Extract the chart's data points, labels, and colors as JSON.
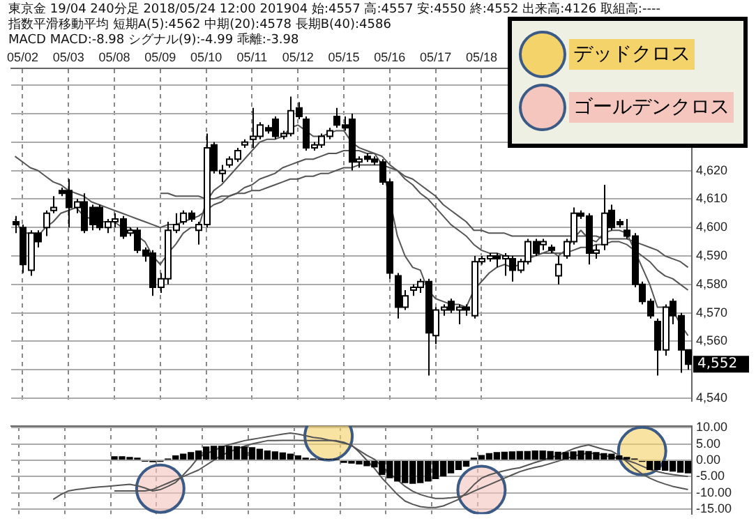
{
  "chart_data": [
    {
      "type": "candlestick",
      "title": "東京金 19/04 240分足 2018/05/24 12:00 201904 始:4557 高:4557 安:4550 終:4552 出来高:4126 取組高:----",
      "subtitle": "指数平滑移動平均 短期A(5):4562 中期(20):4578 長期B(40):4586",
      "categories": [
        null,
        "05/02",
        null,
        null,
        null,
        null,
        null,
        "05/03",
        null,
        null,
        null,
        null,
        null,
        "05/08",
        null,
        null,
        null,
        null,
        null,
        "05/09",
        null,
        null,
        null,
        null,
        null,
        "05/10",
        null,
        null,
        null,
        null,
        null,
        "05/11",
        null,
        null,
        null,
        null,
        null,
        "05/12",
        null,
        null,
        null,
        null,
        null,
        "05/15",
        null,
        null,
        null,
        null,
        null,
        "05/16",
        null,
        null,
        null,
        null,
        null,
        "05/17",
        null,
        null,
        null,
        null,
        null,
        "05/18",
        null,
        null,
        null,
        null,
        null,
        null,
        null,
        null,
        null,
        null,
        null,
        null,
        null,
        null,
        null,
        null,
        null,
        null,
        null,
        null,
        null,
        null,
        null,
        null,
        null,
        null,
        null
      ],
      "ohlc": [
        [
          4602,
          4604,
          4598,
          4601
        ],
        [
          4600,
          4601,
          4584,
          4587
        ],
        [
          4585,
          4599,
          4583,
          4598
        ],
        [
          4598,
          4599,
          4593,
          4595
        ],
        [
          4600,
          4606,
          4597,
          4605
        ],
        [
          4606,
          4611,
          4605,
          4607
        ],
        [
          4613,
          4614,
          4611,
          4612
        ],
        [
          4613,
          4617,
          4600,
          4607
        ],
        [
          4607,
          4610,
          4605,
          4609
        ],
        [
          4609,
          4612,
          4598,
          4599
        ],
        [
          4607,
          4608,
          4599,
          4601
        ],
        [
          4607,
          4608,
          4599,
          4600
        ],
        [
          4600,
          4603,
          4598,
          4602
        ],
        [
          4602,
          4605,
          4600,
          4603
        ],
        [
          4603,
          4604,
          4596,
          4597
        ],
        [
          4598,
          4600,
          4597,
          4599
        ],
        [
          4599,
          4600,
          4591,
          4592
        ],
        [
          4592,
          4593,
          4588,
          4590
        ],
        [
          4591,
          4592,
          4576,
          4579
        ],
        [
          4579,
          4584,
          4577,
          4582
        ],
        [
          4582,
          4602,
          4580,
          4599
        ],
        [
          4599,
          4605,
          4598,
          4601
        ],
        [
          4602,
          4606,
          4601,
          4605
        ],
        [
          4605,
          4606,
          4602,
          4603
        ],
        [
          4599,
          4602,
          4594,
          4601
        ],
        [
          4601,
          4633,
          4600,
          4628
        ],
        [
          4629,
          4630,
          4619,
          4620
        ],
        [
          4619,
          4622,
          4616,
          4620
        ],
        [
          4622,
          4625,
          4621,
          4624
        ],
        [
          4624,
          4628,
          4623,
          4627
        ],
        [
          4629,
          4631,
          4628,
          4630
        ],
        [
          4631,
          4642,
          4628,
          4632
        ],
        [
          4632,
          4637,
          4631,
          4636
        ],
        [
          4635,
          4636,
          4633,
          4634
        ],
        [
          4638,
          4639,
          4631,
          4632
        ],
        [
          4632,
          4634,
          4631,
          4633
        ],
        [
          4633,
          4646,
          4632,
          4641
        ],
        [
          4642,
          4644,
          4638,
          4639
        ],
        [
          4638,
          4639,
          4627,
          4628
        ],
        [
          4628,
          4630,
          4627,
          4629
        ],
        [
          4629,
          4633,
          4628,
          4632
        ],
        [
          4632,
          4635,
          4631,
          4634
        ],
        [
          4639,
          4642,
          4635,
          4636
        ],
        [
          4636,
          4639,
          4634,
          4635
        ],
        [
          4638,
          4640,
          4620,
          4623
        ],
        [
          4623,
          4625,
          4621,
          4624
        ],
        [
          4625,
          4626,
          4623,
          4624
        ],
        [
          4624,
          4625,
          4622,
          4623
        ],
        [
          4623,
          4624,
          4615,
          4616
        ],
        [
          4616,
          4617,
          4582,
          4584
        ],
        [
          4583,
          4584,
          4568,
          4572
        ],
        [
          4572,
          4578,
          4571,
          4576
        ],
        [
          4578,
          4580,
          4576,
          4579
        ],
        [
          4579,
          4582,
          4577,
          4581
        ],
        [
          4581,
          4582,
          4548,
          4563
        ],
        [
          4562,
          4572,
          4559,
          4571
        ],
        [
          4571,
          4573,
          4569,
          4572
        ],
        [
          4574,
          4575,
          4570,
          4571
        ],
        [
          4571,
          4573,
          4566,
          4572
        ],
        [
          4572,
          4573,
          4569,
          4571
        ],
        [
          4569,
          4590,
          4568,
          4588
        ],
        [
          4588,
          4590,
          4587,
          4589
        ],
        [
          4589,
          4591,
          4588,
          4590
        ],
        [
          4590,
          4591,
          4586,
          4589
        ],
        [
          4589,
          4591,
          4583,
          4590
        ],
        [
          4589,
          4590,
          4581,
          4585
        ],
        [
          4585,
          4589,
          4584,
          4588
        ],
        [
          4588,
          4596,
          4587,
          4595
        ],
        [
          4595,
          4596,
          4590,
          4591
        ],
        [
          4594,
          4596,
          4592,
          4595
        ],
        [
          4593,
          4594,
          4591,
          4592
        ],
        [
          4583,
          4590,
          4580,
          4587
        ],
        [
          4590,
          4596,
          4589,
          4595
        ],
        [
          4595,
          4607,
          4594,
          4605
        ],
        [
          4605,
          4606,
          4603,
          4604
        ],
        [
          4604,
          4605,
          4587,
          4591
        ],
        [
          4591,
          4594,
          4589,
          4592
        ],
        [
          4594,
          4615,
          4592,
          4605
        ],
        [
          4606,
          4608,
          4599,
          4600
        ],
        [
          4602,
          4603,
          4600,
          4601
        ],
        [
          4599,
          4603,
          4596,
          4597
        ],
        [
          4597,
          4598,
          4579,
          4580
        ],
        [
          4580,
          4581,
          4573,
          4574
        ],
        [
          4574,
          4575,
          4568,
          4569
        ],
        [
          4567,
          4568,
          4548,
          4557
        ],
        [
          4557,
          4573,
          4555,
          4572
        ],
        [
          4574,
          4575,
          4566,
          4569
        ],
        [
          4569,
          4570,
          4549,
          4557
        ],
        [
          4557,
          4557,
          4550,
          4552
        ]
      ],
      "series": [
        {
          "type": "line",
          "color": "#555555",
          "values": [
            4603,
            4598,
            4598,
            4597,
            4600,
            4602,
            4605,
            4606,
            4607,
            4604,
            4603,
            4602,
            4602,
            4602,
            4600,
            4600,
            4597,
            4595,
            4590,
            4587,
            4591,
            4594,
            4598,
            4600,
            4600,
            4609,
            4613,
            4615,
            4618,
            4621,
            4624,
            4627,
            4630,
            4631,
            4631,
            4632,
            4635,
            4636,
            4634,
            4632,
            4632,
            4633,
            4634,
            4634,
            4630,
            4628,
            4627,
            4626,
            4622,
            4610,
            4597,
            4590,
            4586,
            4585,
            4578,
            4575,
            4574,
            4573,
            4573,
            4572,
            4578,
            4581,
            4584,
            4586,
            4587,
            4586,
            4587,
            4589,
            4590,
            4591,
            4592,
            4590,
            4592,
            4596,
            4599,
            4596,
            4595,
            4598,
            4599,
            4599,
            4598,
            4592,
            4586,
            4580,
            4572,
            4572,
            4571,
            4566,
            4562
          ]
        },
        {
          "type": "line",
          "color": "#555555",
          "values": [
            4625,
            4623,
            4621,
            4620,
            4618,
            4616,
            4615,
            4613,
            4612,
            4611,
            4609,
            4608,
            4607,
            4606,
            4605,
            4604,
            4603,
            4602,
            4601,
            4600,
            4601,
            4601,
            4602,
            4603,
            4604,
            4606,
            4608,
            4609,
            4611,
            4612,
            4614,
            4615,
            4617,
            4618,
            4619,
            4621,
            4622,
            4623,
            4624,
            4624,
            4625,
            4626,
            4626,
            4627,
            4627,
            4627,
            4626,
            4626,
            4625,
            4622,
            4620,
            4617,
            4615,
            4612,
            4610,
            4607,
            4604,
            4601,
            4599,
            4597,
            4594,
            4592,
            4591,
            4591,
            4590,
            4590,
            4590,
            4590,
            4590,
            4591,
            4591,
            4591,
            4591,
            4592,
            4593,
            4593,
            4594,
            4594,
            4595,
            4595,
            4594,
            4592,
            4590,
            4588,
            4585,
            4583,
            4582,
            4580,
            4578
          ]
        },
        {
          "type": "line",
          "color": "#555555",
          "values": [
            null,
            null,
            null,
            null,
            null,
            null,
            null,
            null,
            null,
            null,
            null,
            null,
            null,
            null,
            null,
            null,
            null,
            null,
            null,
            4612,
            4612,
            4611,
            4611,
            4611,
            4611,
            4610,
            4610,
            4611,
            4611,
            4612,
            4612,
            4613,
            4613,
            4614,
            4615,
            4616,
            4617,
            4617,
            4618,
            4618,
            4619,
            4619,
            4620,
            4621,
            4621,
            4622,
            4622,
            4622,
            4622,
            4621,
            4620,
            4618,
            4617,
            4615,
            4613,
            4611,
            4608,
            4606,
            4604,
            4602,
            4599,
            4599,
            4598,
            4598,
            4598,
            4597,
            4597,
            4597,
            4597,
            4597,
            4597,
            4597,
            4597,
            4597,
            4597,
            4597,
            4597,
            4596,
            4596,
            4596,
            4596,
            4595,
            4594,
            4593,
            4592,
            4590,
            4589,
            4588,
            4586
          ]
        }
      ],
      "ylim": [
        4539,
        4656
      ],
      "yticks": [
        {
          "value": 4540,
          "label": "4,540"
        },
        {
          "value": 4550,
          "label": null
        },
        {
          "value": 4560,
          "label": "4,560"
        },
        {
          "value": 4570,
          "label": "4,570"
        },
        {
          "value": 4580,
          "label": "4,580"
        },
        {
          "value": 4590,
          "label": "4,590"
        },
        {
          "value": 4600,
          "label": "4,600"
        },
        {
          "value": 4610,
          "label": "4,610"
        },
        {
          "value": 4620,
          "label": "4,620"
        },
        {
          "value": 4630,
          "label": null
        },
        {
          "value": 4640,
          "label": null
        },
        {
          "value": 4650,
          "label": null
        }
      ],
      "annotations": [
        "MACD MACD:-8.98 シグナル(9):-4.99 乖離:-3.98",
        "4,552"
      ],
      "grid": true,
      "marker": "none",
      "line_style": "solid"
    },
    {
      "type": "bar",
      "categories": [
        null,
        null,
        null,
        null,
        null,
        null,
        null,
        null,
        null,
        null,
        null,
        null,
        null,
        null,
        null,
        null,
        null,
        null,
        null,
        null,
        null,
        null,
        null,
        null,
        null,
        null,
        null,
        null,
        null,
        null,
        null,
        null,
        null,
        null,
        null,
        null,
        null,
        null,
        null,
        null,
        null,
        null,
        null,
        null,
        null,
        null,
        null,
        null,
        null,
        null,
        null,
        null,
        null,
        null,
        null,
        null,
        null,
        null,
        null,
        null,
        null,
        null,
        null,
        null,
        null,
        null,
        null,
        null,
        null,
        null,
        null,
        null,
        null,
        null,
        null,
        null,
        null,
        null,
        null,
        null,
        null,
        null,
        null,
        null,
        null,
        null,
        null,
        null,
        null
      ],
      "tick_labels": "y",
      "series": [
        {
          "type": "bar",
          "color": "#000000",
          "values": [
            null,
            null,
            null,
            null,
            null,
            null,
            null,
            null,
            null,
            null,
            null,
            null,
            null,
            1.2,
            1.2,
            1.0,
            0.8,
            -0.3,
            -0.6,
            -0.5,
            0.5,
            1.5,
            2.0,
            2.5,
            3.0,
            4.2,
            4.4,
            4.4,
            4.4,
            4.3,
            4.2,
            4.0,
            3.5,
            3.0,
            2.7,
            2.4,
            2.0,
            1.5,
            0.8,
            0.5,
            0.3,
            0.2,
            0.1,
            -0.8,
            -1.0,
            -1.3,
            -1.8,
            -2.2,
            -4.5,
            -5.5,
            -6.5,
            -7.0,
            -7.2,
            -7.0,
            -6.5,
            -5.8,
            -5.0,
            -4.0,
            -3.0,
            -2.0,
            0.8,
            1.6,
            2.2,
            2.5,
            2.6,
            2.7,
            2.8,
            2.8,
            3.0,
            3.0,
            2.8,
            2.6,
            2.5,
            2.7,
            3.0,
            2.8,
            2.5,
            2.2,
            2.0,
            1.5,
            1.0,
            0.5,
            -0.5,
            -3.0,
            -3.0,
            -3.2,
            -3.5,
            -3.8,
            -4.0
          ]
        },
        {
          "type": "line",
          "color": "#555555",
          "values": [
            null,
            null,
            null,
            null,
            null,
            -12,
            -10.5,
            -9.4,
            -9,
            -8.7,
            -8.4,
            -8.2,
            -8,
            -7.8,
            -7.6,
            -7.4,
            -7.8,
            -8.5,
            -9.4,
            -9,
            -8,
            -6.8,
            -4.5,
            -2,
            0.9,
            2,
            3,
            4,
            4.8,
            5.4,
            6,
            6.4,
            6.8,
            7.2,
            7.6,
            8,
            8.3,
            8,
            7.5,
            7,
            6.7,
            6.2,
            5.8,
            5.2,
            4.7,
            2.5,
            0,
            -2.5,
            -5.5,
            -8,
            -10.5,
            -12.5,
            -13.5,
            -14.2,
            -14.5,
            -14.5,
            -14,
            -13,
            -12,
            -10,
            -7.5,
            -5.5,
            -4.5,
            -3.8,
            -3.2,
            -2.7,
            -2.3,
            -1.5,
            -0.7,
            0,
            0.8,
            1.5,
            2.5,
            3.5,
            4.2,
            4.7,
            4,
            3.3,
            2.8,
            1.5,
            -0.5,
            -2.5,
            -4.2,
            -5.5,
            -6.5,
            -7.3,
            -8,
            -8.5,
            -9
          ]
        },
        {
          "type": "line",
          "color": "#555555",
          "values": [
            null,
            null,
            null,
            null,
            null,
            null,
            null,
            null,
            null,
            null,
            null,
            null,
            null,
            -9.4,
            -9.4,
            -9.4,
            -9.4,
            -9.4,
            -9,
            -8,
            -7,
            -6,
            -5,
            -4,
            -3,
            -1.5,
            0,
            1.5,
            2.5,
            3.5,
            4.3,
            5,
            5.5,
            6,
            6,
            6.1,
            6.1,
            6.1,
            6,
            6,
            6,
            6,
            6,
            5.5,
            4.5,
            3,
            1.5,
            0.3,
            -2,
            -4,
            -6,
            -8,
            -9.5,
            -10.5,
            -11.2,
            -11.7,
            -11.7,
            -11.5,
            -11.2,
            -10.6,
            -9.5,
            -8.5,
            -7.5,
            -6.5,
            -5.5,
            -4.5,
            -3.5,
            -2.8,
            -2.2,
            -1.7,
            -1,
            -0.3,
            0.5,
            1.2,
            1.8,
            2.2,
            2,
            1.5,
            1,
            0.5,
            0,
            -0.8,
            -1.8,
            -2.8,
            -3.5,
            -4,
            -4.4,
            -4.7,
            -5
          ]
        },
        {
          "type": "scatter",
          "name": "デッドクロス",
          "color": "#f5d36b",
          "marker": "circle",
          "values": [
            null,
            null,
            null,
            null,
            null,
            null,
            null,
            null,
            null,
            null,
            null,
            null,
            null,
            null,
            null,
            null,
            null,
            null,
            null,
            null,
            null,
            null,
            null,
            null,
            null,
            null,
            null,
            null,
            null,
            null,
            null,
            null,
            null,
            null,
            null,
            null,
            null,
            null,
            null,
            null,
            null,
            7.3,
            null,
            null,
            null,
            null,
            null,
            null,
            null,
            null,
            null,
            null,
            null,
            null,
            null,
            null,
            null,
            null,
            null,
            null,
            null,
            null,
            null,
            null,
            null,
            null,
            null,
            null,
            null,
            null,
            null,
            null,
            null,
            null,
            null,
            null,
            null,
            null,
            null,
            null,
            null,
            null,
            2.8,
            null,
            null,
            null,
            null,
            null,
            null
          ]
        },
        {
          "type": "scatter",
          "name": "ゴールデンクロス",
          "color": "#f4c6bd",
          "marker": "circle",
          "values": [
            null,
            null,
            null,
            null,
            null,
            null,
            null,
            null,
            null,
            null,
            null,
            null,
            null,
            null,
            null,
            null,
            null,
            null,
            null,
            -8.7,
            null,
            null,
            null,
            null,
            null,
            null,
            null,
            null,
            null,
            null,
            null,
            null,
            null,
            null,
            null,
            null,
            null,
            null,
            null,
            null,
            null,
            null,
            null,
            null,
            null,
            null,
            null,
            null,
            null,
            null,
            null,
            null,
            null,
            null,
            null,
            null,
            null,
            null,
            null,
            null,
            null,
            -9.1,
            null,
            null,
            null,
            null,
            null,
            null,
            null,
            null,
            null,
            null,
            null,
            null,
            null,
            null,
            null,
            null,
            null,
            null,
            null,
            null,
            null,
            null,
            null,
            null,
            null,
            null,
            null
          ]
        }
      ],
      "ylim": [
        -16.5,
        10.5
      ],
      "yticks": [
        {
          "value": -15,
          "label": "-15.00"
        },
        {
          "value": -10,
          "label": "-10.00"
        },
        {
          "value": -5,
          "label": "-5.00"
        },
        {
          "value": 0,
          "label": "0.00"
        },
        {
          "value": 5,
          "label": "5.00"
        },
        {
          "value": 10,
          "label": "10.00"
        }
      ],
      "grid": true,
      "legend": "top right",
      "marker": "none",
      "line_style": "solid"
    }
  ]
}
